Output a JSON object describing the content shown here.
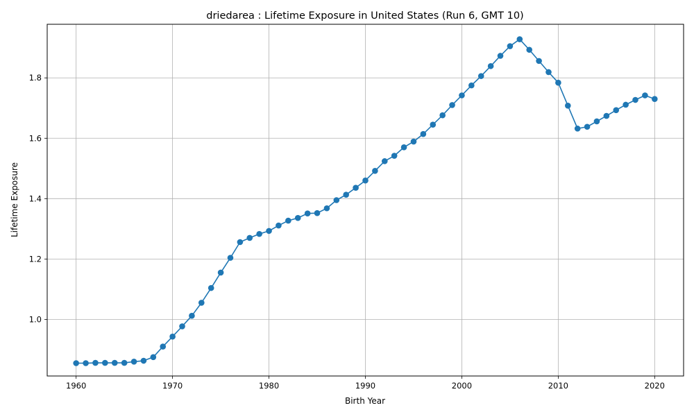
{
  "chart_data": {
    "type": "line",
    "title": "driedarea : Lifetime Exposure in United States (Run 6, GMT 10)",
    "xlabel": "Birth Year",
    "ylabel": "Lifetime Exposure",
    "xlim": [
      1957,
      2023
    ],
    "ylim": [
      0.8125,
      1.9775
    ],
    "xticks": [
      1960,
      1970,
      1980,
      1990,
      2000,
      2010,
      2020
    ],
    "yticks": [
      1.0,
      1.2,
      1.4,
      1.6,
      1.8
    ],
    "xtick_labels": [
      "1960",
      "1970",
      "1980",
      "1990",
      "2000",
      "2010",
      "2020"
    ],
    "ytick_labels": [
      "1.0",
      "1.2",
      "1.4",
      "1.6",
      "1.8"
    ],
    "grid": true,
    "series": [
      {
        "color": "#1f77b4",
        "marker": "circle",
        "x": [
          1960,
          1961,
          1962,
          1963,
          1964,
          1965,
          1966,
          1967,
          1968,
          1969,
          1970,
          1971,
          1972,
          1973,
          1974,
          1975,
          1976,
          1977,
          1978,
          1979,
          1980,
          1981,
          1982,
          1983,
          1984,
          1985,
          1986,
          1987,
          1988,
          1989,
          1990,
          1991,
          1992,
          1993,
          1994,
          1995,
          1996,
          1997,
          1998,
          1999,
          2000,
          2001,
          2002,
          2003,
          2004,
          2005,
          2006,
          2007,
          2008,
          2009,
          2010,
          2011,
          2012,
          2013,
          2014,
          2015,
          2016,
          2017,
          2018,
          2019,
          2020
        ],
        "y": [
          0.855,
          0.855,
          0.856,
          0.856,
          0.856,
          0.856,
          0.86,
          0.863,
          0.875,
          0.91,
          0.943,
          0.977,
          1.012,
          1.055,
          1.104,
          1.155,
          1.204,
          1.256,
          1.27,
          1.283,
          1.293,
          1.311,
          1.327,
          1.336,
          1.351,
          1.352,
          1.368,
          1.395,
          1.413,
          1.436,
          1.46,
          1.492,
          1.524,
          1.542,
          1.57,
          1.589,
          1.614,
          1.645,
          1.676,
          1.71,
          1.742,
          1.775,
          1.806,
          1.839,
          1.873,
          1.905,
          1.928,
          1.893,
          1.856,
          1.819,
          1.784,
          1.708,
          1.632,
          1.638,
          1.656,
          1.674,
          1.693,
          1.711,
          1.727,
          1.742,
          1.73
        ]
      }
    ]
  }
}
